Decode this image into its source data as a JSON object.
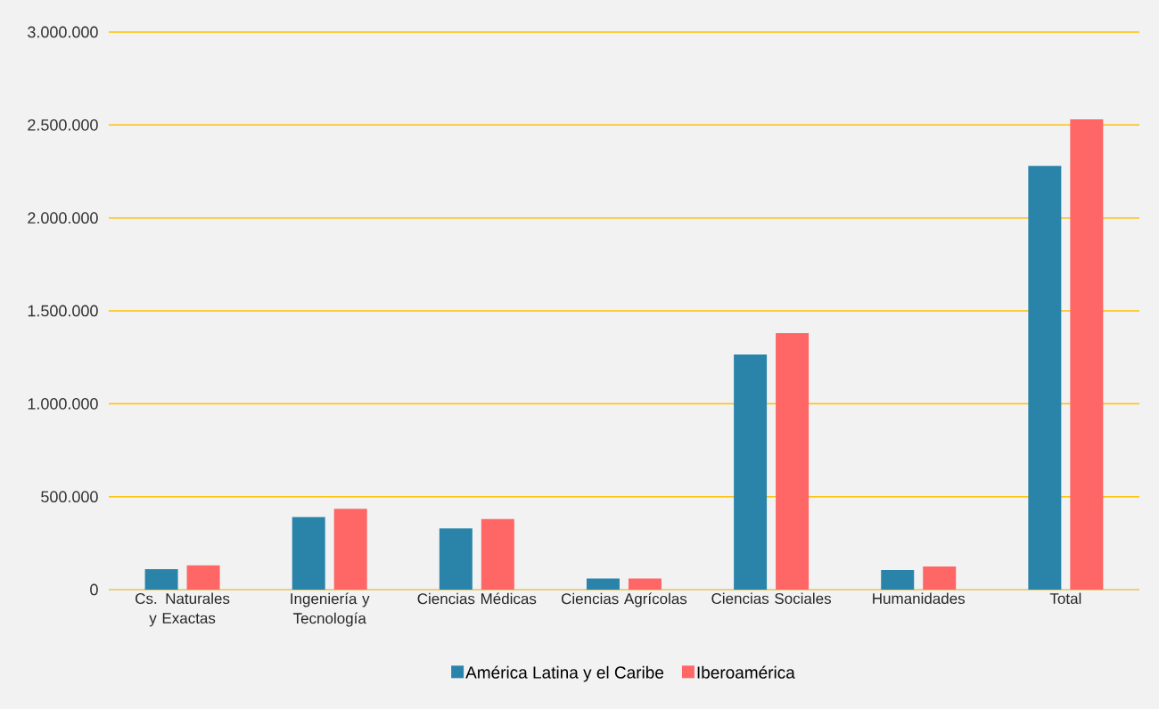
{
  "chart_data": {
    "type": "bar",
    "categories": [
      "Cs. Naturales y Exactas",
      "Ingeniería y Tecnología",
      "Ciencias Médicas",
      "Ciencias Agrícolas",
      "Ciencias Sociales",
      "Humanidades",
      "Total"
    ],
    "series": [
      {
        "name": "América Latina y el Caribe",
        "color": "#2a84aa",
        "values": [
          110000,
          390000,
          330000,
          60000,
          1265000,
          105000,
          2280000
        ]
      },
      {
        "name": "Iberoamérica",
        "color": "#ff6666",
        "values": [
          130000,
          435000,
          380000,
          60000,
          1380000,
          125000,
          2530000
        ]
      }
    ],
    "ylim": [
      0,
      3000000
    ],
    "yticks": [
      0,
      {
        "value": 500000,
        "label": "500.000"
      },
      {
        "value": 1000000,
        "label": "1.000.000"
      },
      {
        "value": 1500000,
        "label": "1.500.000"
      },
      {
        "value": 2000000,
        "label": "2.000.000"
      },
      {
        "value": 2500000,
        "label": "2.500.000"
      },
      {
        "value": 3000000,
        "label": "3.000.000"
      }
    ],
    "grid": "y",
    "legend": "bottom"
  }
}
